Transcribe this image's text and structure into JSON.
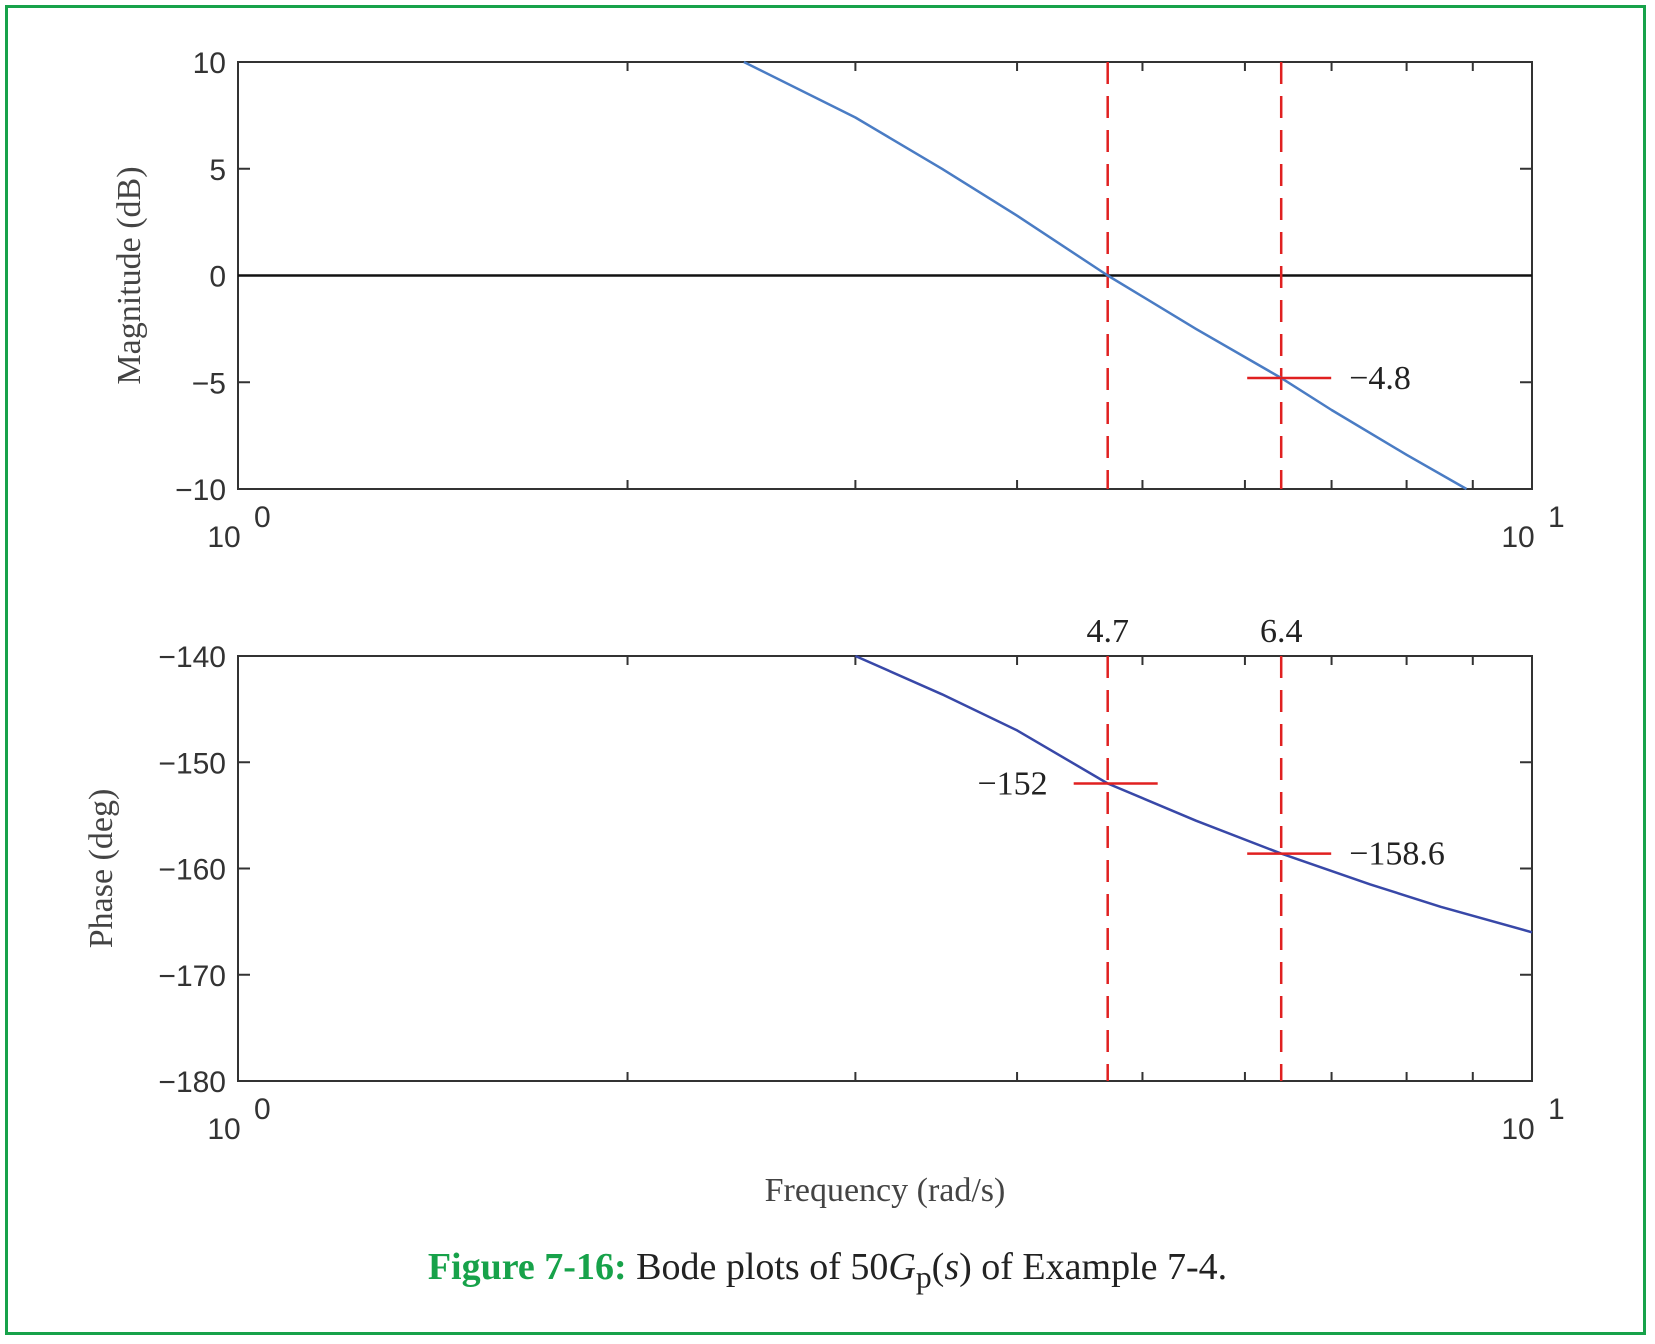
{
  "chart_data": [
    {
      "type": "line",
      "ylabel": "Magnitude (dB)",
      "x_scale": "log",
      "xlim": [
        1,
        10
      ],
      "ylim": [
        -10,
        10
      ],
      "x_ticks": [
        {
          "base": "10",
          "exp": "0"
        },
        {
          "base": "10",
          "exp": "1"
        }
      ],
      "y_ticks": [
        "10",
        "5",
        "0",
        "−5",
        "−10"
      ],
      "y_tick_values": [
        10,
        5,
        0,
        -5,
        -10
      ],
      "color": "#4a7cc4",
      "series": [
        {
          "x": [
            2.46,
            3.0,
            3.5,
            4.0,
            4.7,
            5.5,
            6.4,
            7.0,
            8.0,
            8.9
          ],
          "values": [
            10.0,
            7.4,
            5.0,
            2.8,
            0.0,
            -2.5,
            -4.8,
            -6.3,
            -8.4,
            -10.0
          ]
        }
      ],
      "reference_line": {
        "y": 0,
        "color": "#111111"
      },
      "markers": [
        {
          "x": 6.4,
          "y": -4.8,
          "label": "−4.8",
          "label_side": "right"
        }
      ],
      "vlines": [
        4.7,
        6.4
      ],
      "marker_color": "#e02020"
    },
    {
      "type": "line",
      "ylabel": "Phase (deg)",
      "xlabel": "Frequency (rad/s)",
      "x_scale": "log",
      "xlim": [
        1,
        10
      ],
      "ylim": [
        -180,
        -140
      ],
      "x_ticks": [
        {
          "base": "10",
          "exp": "0"
        },
        {
          "base": "10",
          "exp": "1"
        }
      ],
      "y_ticks": [
        "−140",
        "−150",
        "−160",
        "−170",
        "−180"
      ],
      "y_tick_values": [
        -140,
        -150,
        -160,
        -170,
        -180
      ],
      "color": "#3848a8",
      "series": [
        {
          "x": [
            3.0,
            3.5,
            4.0,
            4.7,
            5.5,
            6.4,
            7.5,
            8.5,
            10.0
          ],
          "values": [
            -140.0,
            -143.6,
            -147.0,
            -152.0,
            -155.5,
            -158.6,
            -161.5,
            -163.6,
            -166.0
          ]
        }
      ],
      "markers": [
        {
          "x": 4.7,
          "y": -152,
          "label": "−152",
          "label_side": "left"
        },
        {
          "x": 6.4,
          "y": -158.6,
          "label": "−158.6",
          "label_side": "right"
        }
      ],
      "vlines": [
        {
          "x": 4.7,
          "label": "4.7"
        },
        {
          "x": 6.4,
          "label": "6.4"
        }
      ],
      "marker_color": "#e02020"
    }
  ],
  "caption": {
    "label": "Figure 7-16:",
    "text_before": " Bode plots of 50",
    "G": "G",
    "sub": "p",
    "paren_open": "(",
    "s": "s",
    "text_after": ") of Example 7-4."
  },
  "colors": {
    "frame": "#17a24a",
    "axis": "#333333"
  }
}
